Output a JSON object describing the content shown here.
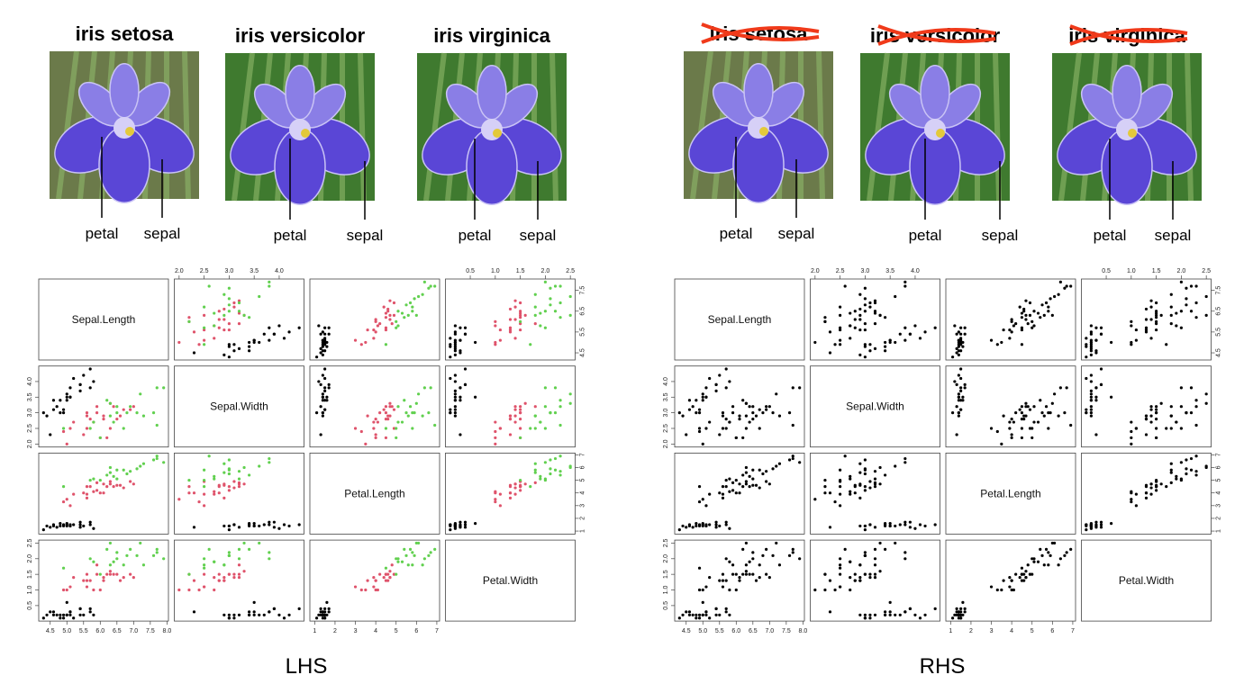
{
  "left": {
    "caption": "LHS",
    "flowers": [
      {
        "title": "iris setosa",
        "petal": "petal",
        "sepal": "sepal"
      },
      {
        "title": "iris versicolor",
        "petal": "petal",
        "sepal": "sepal"
      },
      {
        "title": "iris virginica",
        "petal": "petal",
        "sepal": "sepal"
      }
    ]
  },
  "right": {
    "caption": "RHS",
    "point_color": "#000000",
    "flowers": [
      {
        "title": "iris setosa",
        "petal": "petal",
        "sepal": "sepal"
      },
      {
        "title": "iris versicolor",
        "petal": "petal",
        "sepal": "sepal"
      },
      {
        "title": "iris virginica",
        "petal": "petal",
        "sepal": "sepal"
      }
    ]
  },
  "matrix": {
    "variables": [
      "Sepal.Length",
      "Sepal.Width",
      "Petal.Length",
      "Petal.Width"
    ],
    "ranges": [
      [
        4.156,
        8.044
      ],
      [
        1.904,
        4.496
      ],
      [
        0.764,
        7.136
      ],
      [
        0.004,
        2.596
      ]
    ],
    "axes": [
      {
        "side": "bottom",
        "variable": 0,
        "ticks": [
          4.5,
          {
            "value": 5,
            "label": "5.0"
          },
          5.5,
          {
            "value": 6,
            "label": "6.0"
          },
          6.5,
          {
            "value": 7,
            "label": "7.0"
          },
          7.5,
          {
            "value": 8,
            "label": "8.0"
          }
        ]
      },
      {
        "side": "top",
        "variable": 1,
        "ticks": [
          {
            "value": 2,
            "label": "2.0"
          },
          2.5,
          {
            "value": 3,
            "label": "3.0"
          },
          3.5,
          {
            "value": 4,
            "label": "4.0"
          }
        ]
      },
      {
        "side": "bottom",
        "variable": 2,
        "ticks": [
          1,
          2,
          3,
          4,
          5,
          6,
          7
        ]
      },
      {
        "side": "top",
        "variable": 3,
        "ticks": [
          0.5,
          {
            "value": 1,
            "label": "1.0"
          },
          1.5,
          {
            "value": 2,
            "label": "2.0"
          },
          2.5
        ]
      },
      {
        "side": "right",
        "variable": 0,
        "ticks": [
          4.5,
          5.5,
          6.5,
          7.5
        ]
      },
      {
        "side": "left",
        "variable": 1,
        "ticks": [
          {
            "value": 2,
            "label": "2.0"
          },
          2.5,
          {
            "value": 3,
            "label": "3.0"
          },
          3.5,
          {
            "value": 4,
            "label": "4.0"
          }
        ]
      },
      {
        "side": "right",
        "variable": 2,
        "ticks": [
          1,
          2,
          3,
          4,
          5,
          6,
          7
        ]
      },
      {
        "side": "left",
        "variable": 3,
        "ticks": [
          0.5,
          {
            "value": 1,
            "label": "1.0"
          },
          1.5,
          {
            "value": 2,
            "label": "2.0"
          },
          2.5
        ]
      }
    ],
    "species": [
      {
        "color": "#000000",
        "points": [
          [
            5.1,
            3.5,
            1.4,
            0.2
          ],
          [
            4.9,
            3.0,
            1.4,
            0.2
          ],
          [
            4.7,
            3.2,
            1.3,
            0.2
          ],
          [
            4.6,
            3.1,
            1.5,
            0.2
          ],
          [
            5.0,
            3.6,
            1.4,
            0.2
          ],
          [
            5.4,
            3.9,
            1.7,
            0.4
          ],
          [
            4.6,
            3.4,
            1.4,
            0.3
          ],
          [
            5.0,
            3.4,
            1.5,
            0.2
          ],
          [
            4.4,
            2.9,
            1.4,
            0.2
          ],
          [
            4.9,
            3.1,
            1.5,
            0.1
          ],
          [
            5.4,
            3.7,
            1.5,
            0.2
          ],
          [
            4.8,
            3.4,
            1.6,
            0.2
          ],
          [
            4.8,
            3.0,
            1.4,
            0.1
          ],
          [
            4.3,
            3.0,
            1.1,
            0.1
          ],
          [
            5.8,
            4.0,
            1.2,
            0.2
          ],
          [
            5.7,
            4.4,
            1.5,
            0.4
          ],
          [
            5.4,
            3.9,
            1.3,
            0.4
          ],
          [
            5.1,
            3.5,
            1.4,
            0.3
          ],
          [
            5.7,
            3.8,
            1.7,
            0.3
          ],
          [
            5.1,
            3.8,
            1.5,
            0.3
          ],
          [
            4.5,
            2.3,
            1.3,
            0.3
          ],
          [
            5.0,
            3.5,
            1.6,
            0.6
          ],
          [
            5.2,
            4.1,
            1.5,
            0.1
          ],
          [
            5.5,
            4.2,
            1.4,
            0.2
          ]
        ]
      },
      {
        "color": "#df536b",
        "points": [
          [
            7.0,
            3.2,
            4.7,
            1.4
          ],
          [
            6.4,
            3.2,
            4.5,
            1.5
          ],
          [
            6.9,
            3.1,
            4.9,
            1.5
          ],
          [
            5.5,
            2.3,
            4.0,
            1.3
          ],
          [
            6.5,
            2.8,
            4.6,
            1.5
          ],
          [
            5.7,
            2.8,
            4.5,
            1.3
          ],
          [
            6.3,
            3.3,
            4.7,
            1.6
          ],
          [
            4.9,
            2.4,
            3.3,
            1.0
          ],
          [
            6.6,
            2.9,
            4.6,
            1.3
          ],
          [
            5.2,
            2.7,
            3.9,
            1.4
          ],
          [
            5.0,
            2.0,
            3.5,
            1.0
          ],
          [
            5.9,
            3.0,
            4.2,
            1.5
          ],
          [
            6.0,
            2.2,
            4.0,
            1.0
          ],
          [
            6.1,
            2.9,
            4.7,
            1.4
          ],
          [
            5.6,
            2.9,
            3.6,
            1.3
          ],
          [
            6.7,
            3.1,
            4.4,
            1.4
          ],
          [
            5.6,
            3.0,
            4.5,
            1.5
          ],
          [
            5.8,
            2.7,
            4.1,
            1.0
          ],
          [
            6.2,
            2.2,
            4.5,
            1.5
          ],
          [
            5.6,
            2.5,
            3.9,
            1.1
          ],
          [
            5.9,
            3.2,
            4.8,
            1.8
          ],
          [
            6.1,
            2.8,
            4.0,
            1.3
          ],
          [
            6.3,
            2.5,
            4.9,
            1.5
          ],
          [
            5.1,
            2.5,
            3.0,
            1.1
          ]
        ]
      },
      {
        "color": "#61d04f",
        "points": [
          [
            6.3,
            3.3,
            6.0,
            2.5
          ],
          [
            5.8,
            2.7,
            5.1,
            1.9
          ],
          [
            7.1,
            3.0,
            5.9,
            2.1
          ],
          [
            6.3,
            2.9,
            5.6,
            1.8
          ],
          [
            6.5,
            3.0,
            5.8,
            2.2
          ],
          [
            7.6,
            3.0,
            6.6,
            2.1
          ],
          [
            4.9,
            2.5,
            4.5,
            1.7
          ],
          [
            7.3,
            2.9,
            6.3,
            1.8
          ],
          [
            6.7,
            2.5,
            5.8,
            1.8
          ],
          [
            7.2,
            3.6,
            6.1,
            2.5
          ],
          [
            6.5,
            3.2,
            5.1,
            2.0
          ],
          [
            6.4,
            2.7,
            5.3,
            1.9
          ],
          [
            6.8,
            3.0,
            5.5,
            2.1
          ],
          [
            5.7,
            2.5,
            5.0,
            2.0
          ],
          [
            7.7,
            3.8,
            6.7,
            2.2
          ],
          [
            7.7,
            2.6,
            6.9,
            2.3
          ],
          [
            6.0,
            2.2,
            5.0,
            1.5
          ],
          [
            7.9,
            3.8,
            6.4,
            2.0
          ],
          [
            6.9,
            3.2,
            5.7,
            2.3
          ],
          [
            6.2,
            3.4,
            5.4,
            2.3
          ]
        ]
      }
    ]
  }
}
